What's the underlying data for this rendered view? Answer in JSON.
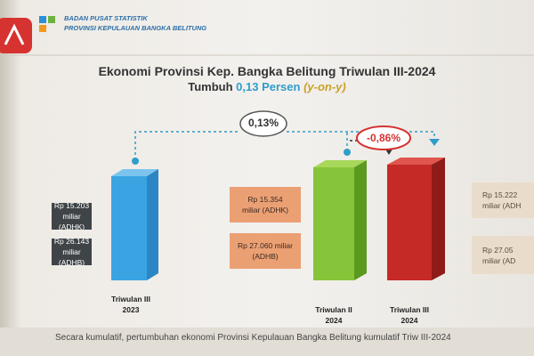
{
  "header": {
    "org": "BADAN PUSAT STATISTIK",
    "region": "PROVINSI KEPULAUAN BANGKA BELITUNG",
    "title": "Ekonomi Provinsi Kep. Bangka Belitung Triwulan III-2024",
    "subtitle": {
      "prefix": "Tumbuh",
      "growth": "0,13 Persen",
      "basis": "(y-on-y)"
    }
  },
  "growth": {
    "yoy": "0,13%",
    "qoq": "-0,86%"
  },
  "periods": [
    {
      "label": [
        "Triwulan III",
        "2023"
      ],
      "adhk": [
        "Rp 15.203",
        "miliar (ADHK)"
      ],
      "adhb": [
        "Rp 26.143 miliar",
        "(ADHB)"
      ]
    },
    {
      "label": [
        "Triwulan II",
        "2024"
      ],
      "adhk": [
        "Rp 15.354",
        "miliar (ADHK)"
      ],
      "adhb": [
        "Rp 27.060 miliar",
        "(ADHB)"
      ]
    },
    {
      "label": [
        "Triwulan III",
        "2024"
      ],
      "adhk": [
        "Rp 15.222",
        "miliar (ADH"
      ],
      "adhb": [
        "Rp 27.05",
        "miliar (AD"
      ]
    }
  ],
  "footer": "Secara kumulatif, pertumbuhan ekonomi Provinsi Kepulauan Bangka Belitung kumulatif Triw III-2024"
}
